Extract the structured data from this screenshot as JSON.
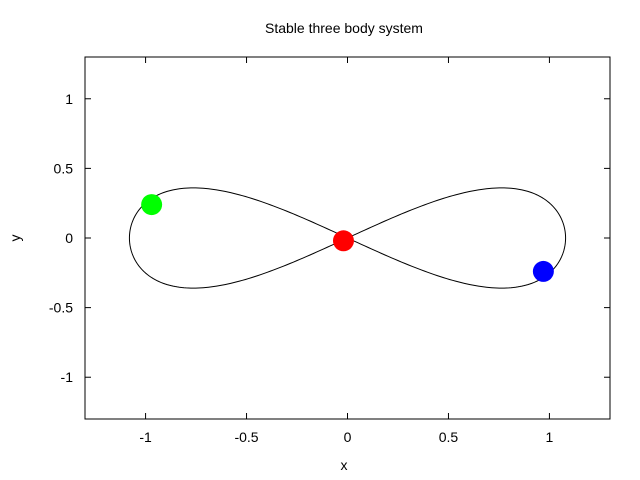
{
  "chart_data": {
    "type": "scatter",
    "title": "Stable three body system",
    "xlabel": "x",
    "ylabel": "y",
    "xlim": [
      -1.3,
      1.3
    ],
    "ylim": [
      -1.3,
      1.3
    ],
    "x_ticks": [
      -1,
      -0.5,
      0,
      0.5,
      1
    ],
    "x_tick_labels": [
      "-1",
      "-0.5",
      "0",
      "0.5",
      "1"
    ],
    "y_ticks": [
      -1,
      -0.5,
      0,
      0.5,
      1
    ],
    "y_tick_labels": [
      "-1",
      "-0.5",
      "0",
      "0.5",
      "1"
    ],
    "grid": false,
    "legend": "none",
    "orbit": {
      "shape": "figure-eight",
      "x_extent": [
        -1.08,
        1.08
      ],
      "y_extent": [
        -0.36,
        0.36
      ],
      "color": "#000000"
    },
    "bodies": [
      {
        "color": "#00ff00",
        "x": -0.97,
        "y": 0.24
      },
      {
        "color": "#ff0000",
        "x": -0.02,
        "y": -0.02
      },
      {
        "color": "#0000ff",
        "x": 0.97,
        "y": -0.24
      }
    ]
  }
}
